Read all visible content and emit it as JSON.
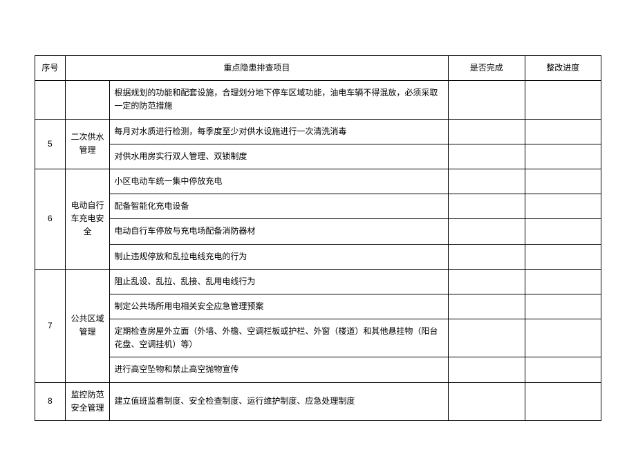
{
  "table": {
    "headers": {
      "seq": "序号",
      "item": "重点隐患排查项目",
      "done": "是否完成",
      "progress": "整改进度"
    },
    "rows": [
      {
        "seq": "",
        "category": "",
        "item": "根据规划的功能和配套设施，合理划分地下停车区域功能，油电车辆不得混放，必须采取一定的防范措施",
        "done": "",
        "progress": ""
      },
      {
        "seq": "5",
        "category": "二次供水管理",
        "item": "每月对水质进行检测，每季度至少对供水设施进行一次清洗消毒",
        "done": "",
        "progress": ""
      },
      {
        "seq": "",
        "category": "",
        "item": "对供水用房实行双人管理、双锁制度",
        "done": "",
        "progress": ""
      },
      {
        "seq": "6",
        "category": "电动自行车充电安全",
        "item": "小区电动车统一集中停放充电",
        "done": "",
        "progress": ""
      },
      {
        "seq": "",
        "category": "",
        "item": "配备智能化充电设备",
        "done": "",
        "progress": ""
      },
      {
        "seq": "",
        "category": "",
        "item": "电动自行车停放与充电场配备消防器材",
        "done": "",
        "progress": ""
      },
      {
        "seq": "",
        "category": "",
        "item": "制止违规停放和乱拉电线充电的行为",
        "done": "",
        "progress": ""
      },
      {
        "seq": "7",
        "category": "公共区域管理",
        "item": "阻止乱设、乱拉、乱接、乱用电线行为",
        "done": "",
        "progress": ""
      },
      {
        "seq": "",
        "category": "",
        "item": "制定公共场所用电相关安全应急管理预案",
        "done": "",
        "progress": ""
      },
      {
        "seq": "",
        "category": "",
        "item": "定期检查房屋外立面（外墙、外檐、空调栏板或护栏、外窗（楼道）和其他悬挂物（阳台花盘、空调挂机）等）",
        "done": "",
        "progress": ""
      },
      {
        "seq": "",
        "category": "",
        "item": "进行高空坠物和禁止高空抛物宣传",
        "done": "",
        "progress": ""
      },
      {
        "seq": "8",
        "category": "监控防范安全管理",
        "item": "建立值班监看制度、安全检查制度、运行维护制度、应急处理制度",
        "done": "",
        "progress": ""
      }
    ]
  },
  "styling": {
    "border_color": "#000000",
    "background_color": "#ffffff",
    "font_size": 12,
    "col_widths": {
      "seq": 42,
      "cat": 62,
      "item": 470,
      "done": 106,
      "prog": 106
    }
  }
}
